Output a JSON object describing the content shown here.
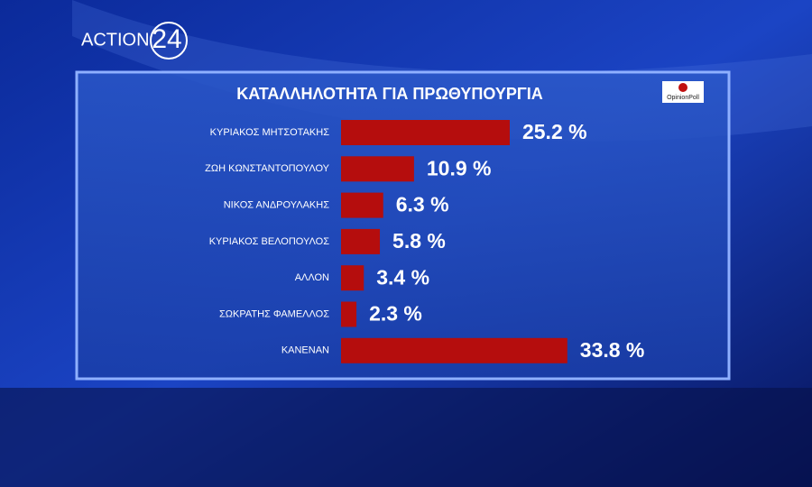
{
  "logo": {
    "brand": "ACTION",
    "number": "24"
  },
  "source": "OpinionPoll",
  "chart_data": {
    "type": "bar",
    "orientation": "horizontal",
    "title": "ΚΑΤΑΛΛΗΛΟΤΗΤΑ ΓΙΑ ΠΡΩΘΥΠΟΥΡΓΙΑ",
    "categories": [
      "ΚΥΡΙΑΚΟΣ ΜΗΤΣΟΤΑΚΗΣ",
      "ΖΩΗ ΚΩΝΣΤΑΝΤΟΠΟΥΛΟΥ",
      "ΝΙΚΟΣ ΑΝΔΡΟΥΛΑΚΗΣ",
      "ΚΥΡΙΑΚΟΣ ΒΕΛΟΠΟΥΛΟΣ",
      "ΑΛΛΟΝ",
      "ΣΩΚΡΑΤΗΣ ΦΑΜΕΛΛΟΣ",
      "ΚΑΝΕΝΑΝ"
    ],
    "values": [
      25.2,
      10.9,
      6.3,
      5.8,
      3.4,
      2.3,
      33.8
    ],
    "value_labels": [
      "25.2 %",
      "10.9 %",
      "6.3 %",
      "5.8 %",
      "3.4 %",
      "2.3 %",
      "33.8 %"
    ],
    "color": "#b50d0d"
  }
}
